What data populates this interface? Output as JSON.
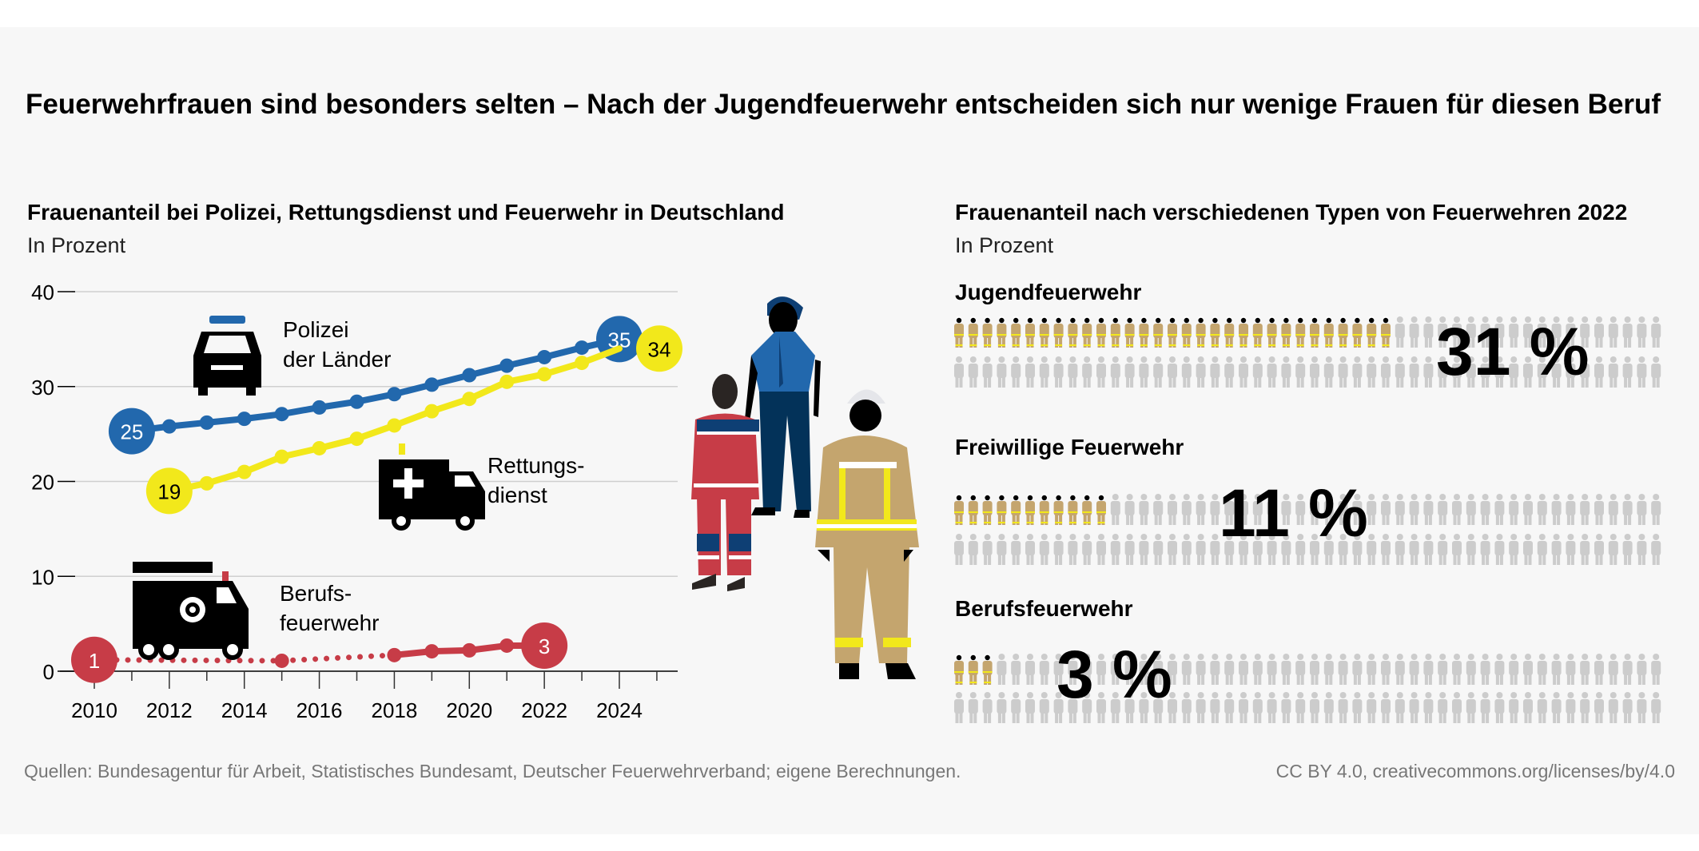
{
  "title": "Feuerwehrfrauen sind besonders selten – Nach der Jugendfeuerwehr entscheiden sich nur wenige Frauen für diesen Beruf",
  "colors": {
    "polizei": "#2268ad",
    "rettung": "#f2e81b",
    "feuerwehr": "#c73c47",
    "figure_active": "#c4a56e",
    "figure_inactive": "#cccccc",
    "background": "#f7f7f7"
  },
  "chart_data": [
    {
      "type": "line",
      "title": "Frauenanteil bei Polizei, Rettungsdienst und Feuerwehr in Deutschland",
      "subtitle": "In Prozent",
      "ylim": [
        0,
        40
      ],
      "yticks": [
        "0",
        "10",
        "20",
        "30",
        "40"
      ],
      "xlim": [
        2010,
        2025
      ],
      "xticks": [
        "2010",
        "2012",
        "2014",
        "2016",
        "2018",
        "2020",
        "2022",
        "2024"
      ],
      "grid": true,
      "series": [
        {
          "name": "Polizei der Länder",
          "name_lines": [
            "Polizei",
            "der Länder"
          ],
          "icon": "police-car-icon",
          "color": "#2268ad",
          "x": [
            2011,
            2012,
            2013,
            2014,
            2015,
            2016,
            2017,
            2018,
            2019,
            2020,
            2021,
            2022,
            2023,
            2024
          ],
          "values": [
            25.3,
            25.8,
            26.2,
            26.6,
            27.1,
            27.8,
            28.4,
            29.2,
            30.2,
            31.2,
            32.2,
            33.1,
            34.1,
            35
          ],
          "start_label": "25",
          "end_label": "35"
        },
        {
          "name": "Rettungsdienst",
          "name_lines": [
            "Rettungs-",
            "dienst"
          ],
          "icon": "ambulance-icon",
          "color": "#f2e81b",
          "x": [
            2012,
            2013,
            2014,
            2015,
            2016,
            2017,
            2018,
            2019,
            2020,
            2021,
            2022,
            2023,
            2024
          ],
          "values": [
            19,
            19.8,
            21,
            22.6,
            23.5,
            24.5,
            25.9,
            27.4,
            28.7,
            30.5,
            31.3,
            32.5,
            34
          ],
          "start_label": "19",
          "end_label": "34"
        },
        {
          "name": "Berufsfeuerwehr",
          "name_lines": [
            "Berufs-",
            "feuerwehr"
          ],
          "icon": "fire-truck-icon",
          "color": "#c73c47",
          "x": [
            2010,
            2015,
            2018,
            2019,
            2020,
            2021,
            2022
          ],
          "values": [
            1.2,
            1.1,
            1.7,
            2.1,
            2.2,
            2.7,
            2.7
          ],
          "dotted_until": 2018,
          "start_label": "1",
          "end_label": "3"
        }
      ]
    },
    {
      "type": "pictogram",
      "title": "Frauenanteil nach verschiedenen Typen von Feuerwehren 2022",
      "subtitle": "In Prozent",
      "total_figures": 100,
      "categories": [
        "Jugendfeuerwehr",
        "Freiwillige Feuerwehr",
        "Berufsfeuerwehr"
      ],
      "values": [
        31,
        11,
        3
      ],
      "value_labels": [
        "31 %",
        "11 %",
        "3 %"
      ]
    }
  ],
  "footer": {
    "source": "Quellen: Bundesagentur für Arbeit, Statistisches Bundesamt, Deutscher Feuerwehrverband; eigene Berechnungen.",
    "license": "CC BY 4.0, creativecommons.org/licenses/by/4.0"
  }
}
